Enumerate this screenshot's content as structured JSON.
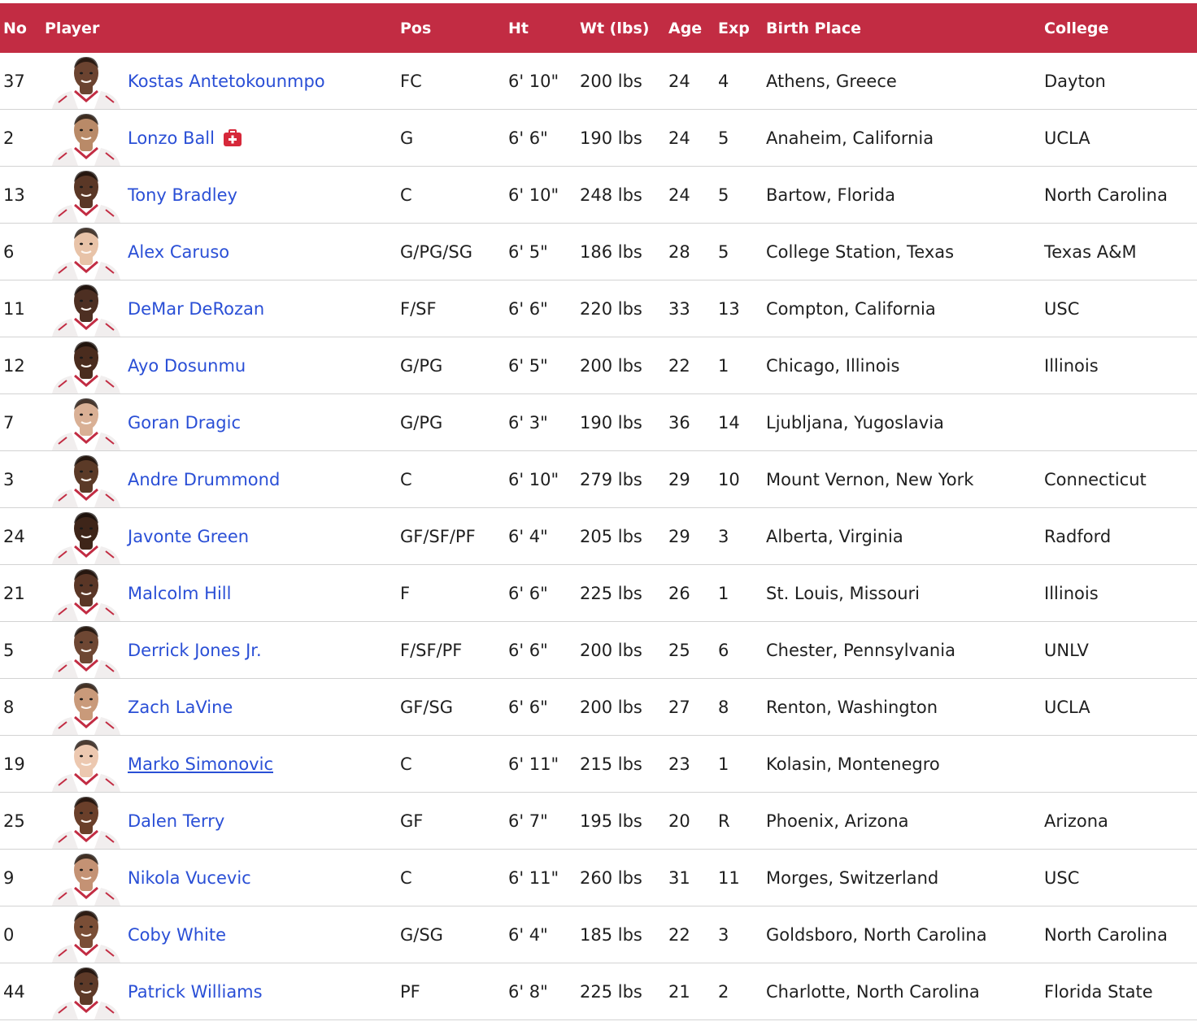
{
  "columns": {
    "no": "No",
    "player": "Player",
    "pos": "Pos",
    "ht": "Ht",
    "wt": "Wt (lbs)",
    "age": "Age",
    "exp": "Exp",
    "birth_place": "Birth Place",
    "college": "College"
  },
  "colors": {
    "header_bg": "#c22c43",
    "link": "#2a4fd6",
    "injury_icon": "#d6283a"
  },
  "rows": [
    {
      "no": "37",
      "name": "Kostas Antetokounmpo",
      "pos": "FC",
      "ht": "6' 10\"",
      "wt": "200 lbs",
      "age": "24",
      "exp": "4",
      "birth_place": "Athens, Greece",
      "college": "Dayton",
      "skin": "#6b4330",
      "injured": false
    },
    {
      "no": "2",
      "name": "Lonzo Ball",
      "pos": "G",
      "ht": "6' 6\"",
      "wt": "190 lbs",
      "age": "24",
      "exp": "5",
      "birth_place": "Anaheim, California",
      "college": "UCLA",
      "skin": "#b98a68",
      "injured": true,
      "injury_icon": "first-aid-kit-icon"
    },
    {
      "no": "13",
      "name": "Tony Bradley",
      "pos": "C",
      "ht": "6' 10\"",
      "wt": "248 lbs",
      "age": "24",
      "exp": "5",
      "birth_place": "Bartow, Florida",
      "college": "North Carolina",
      "skin": "#5a3726",
      "injured": false
    },
    {
      "no": "6",
      "name": "Alex Caruso",
      "pos": "G/PG/SG",
      "ht": "6' 5\"",
      "wt": "186 lbs",
      "age": "28",
      "exp": "5",
      "birth_place": "College Station, Texas",
      "college": "Texas A&M",
      "skin": "#e8c3a8",
      "injured": false
    },
    {
      "no": "11",
      "name": "DeMar DeRozan",
      "pos": "F/SF",
      "ht": "6' 6\"",
      "wt": "220 lbs",
      "age": "33",
      "exp": "13",
      "birth_place": "Compton, California",
      "college": "USC",
      "skin": "#4d2f22",
      "injured": false
    },
    {
      "no": "12",
      "name": "Ayo Dosunmu",
      "pos": "G/PG",
      "ht": "6' 5\"",
      "wt": "200 lbs",
      "age": "22",
      "exp": "1",
      "birth_place": "Chicago, Illinois",
      "college": "Illinois",
      "skin": "#4a2c1e",
      "injured": false
    },
    {
      "no": "7",
      "name": "Goran Dragic",
      "pos": "G/PG",
      "ht": "6' 3\"",
      "wt": "190 lbs",
      "age": "36",
      "exp": "14",
      "birth_place": "Ljubljana, Yugoslavia",
      "college": "",
      "skin": "#d9b095",
      "injured": false
    },
    {
      "no": "3",
      "name": "Andre Drummond",
      "pos": "C",
      "ht": "6' 10\"",
      "wt": "279 lbs",
      "age": "29",
      "exp": "10",
      "birth_place": "Mount Vernon, New York",
      "college": "Connecticut",
      "skin": "#5b3a27",
      "injured": false
    },
    {
      "no": "24",
      "name": "Javonte Green",
      "pos": "GF/SF/PF",
      "ht": "6' 4\"",
      "wt": "205 lbs",
      "age": "29",
      "exp": "3",
      "birth_place": "Alberta, Virginia",
      "college": "Radford",
      "skin": "#3e2519",
      "injured": false
    },
    {
      "no": "21",
      "name": "Malcolm Hill",
      "pos": "F",
      "ht": "6' 6\"",
      "wt": "225 lbs",
      "age": "26",
      "exp": "1",
      "birth_place": "St. Louis, Missouri",
      "college": "Illinois",
      "skin": "#5a3626",
      "injured": false
    },
    {
      "no": "5",
      "name": "Derrick Jones Jr.",
      "pos": "F/SF/PF",
      "ht": "6' 6\"",
      "wt": "200 lbs",
      "age": "25",
      "exp": "6",
      "birth_place": "Chester, Pennsylvania",
      "college": "UNLV",
      "skin": "#6e4733",
      "injured": false
    },
    {
      "no": "8",
      "name": "Zach LaVine",
      "pos": "GF/SG",
      "ht": "6' 6\"",
      "wt": "200 lbs",
      "age": "27",
      "exp": "8",
      "birth_place": "Renton, Washington",
      "college": "UCLA",
      "skin": "#c99a7a",
      "injured": false
    },
    {
      "no": "19",
      "name": "Marko Simonovic",
      "pos": "C",
      "ht": "6' 11\"",
      "wt": "215 lbs",
      "age": "23",
      "exp": "1",
      "birth_place": "Kolasin, Montenegro",
      "college": "",
      "skin": "#ecc8b0",
      "injured": false,
      "hovered": true
    },
    {
      "no": "25",
      "name": "Dalen Terry",
      "pos": "GF",
      "ht": "6' 7\"",
      "wt": "195 lbs",
      "age": "20",
      "exp": "R",
      "birth_place": "Phoenix, Arizona",
      "college": "Arizona",
      "skin": "#6a3f2a",
      "injured": false
    },
    {
      "no": "9",
      "name": "Nikola Vucevic",
      "pos": "C",
      "ht": "6' 11\"",
      "wt": "260 lbs",
      "age": "31",
      "exp": "11",
      "birth_place": "Morges, Switzerland",
      "college": "USC",
      "skin": "#c49274",
      "injured": false
    },
    {
      "no": "0",
      "name": "Coby White",
      "pos": "G/SG",
      "ht": "6' 4\"",
      "wt": "185 lbs",
      "age": "22",
      "exp": "3",
      "birth_place": "Goldsboro, North Carolina",
      "college": "North Carolina",
      "skin": "#7a4e36",
      "injured": false
    },
    {
      "no": "44",
      "name": "Patrick Williams",
      "pos": "PF",
      "ht": "6' 8\"",
      "wt": "225 lbs",
      "age": "21",
      "exp": "2",
      "birth_place": "Charlotte, North Carolina",
      "college": "Florida State",
      "skin": "#5e3a28",
      "injured": false
    }
  ]
}
